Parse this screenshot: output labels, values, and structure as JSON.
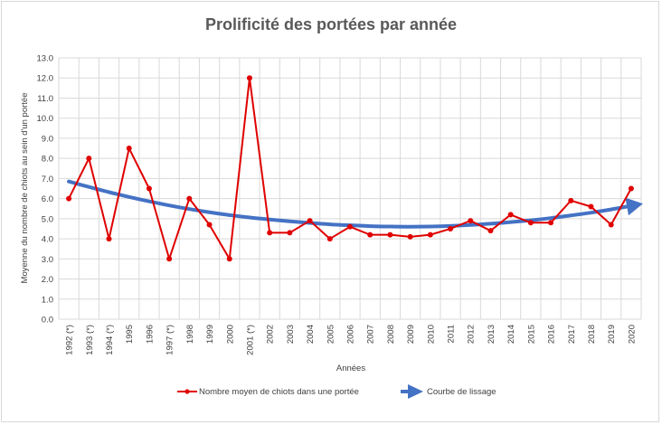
{
  "chart_data": {
    "type": "line",
    "title": "Prolificité des portées par année",
    "xlabel": "Années",
    "ylabel": "Moyenne du nombre de chiots au sein d'un portée",
    "ylim": [
      0,
      13
    ],
    "yticks": [
      "0.0",
      "1.0",
      "2.0",
      "3.0",
      "4.0",
      "5.0",
      "6.0",
      "7.0",
      "8.0",
      "9.0",
      "10.0",
      "11.0",
      "12.0",
      "13.0"
    ],
    "categories": [
      "1992 (*)",
      "1993 (*)",
      "1994 (*)",
      "1995",
      "1996",
      "1997 (*)",
      "1998",
      "1999",
      "2000",
      "2001 (*)",
      "2002",
      "2003",
      "2004",
      "2005",
      "2006",
      "2007",
      "2008",
      "2009",
      "2010",
      "2011",
      "2012",
      "2013",
      "2014",
      "2015",
      "2016",
      "2017",
      "2018",
      "2019",
      "2020"
    ],
    "grid": true,
    "legend_position": "bottom",
    "series": [
      {
        "name": "Nombre moyen de chiots dans une portée",
        "color": "#e00000",
        "values": [
          6.0,
          8.0,
          4.0,
          8.5,
          6.5,
          3.0,
          6.0,
          4.7,
          3.0,
          12.0,
          4.3,
          4.3,
          4.9,
          4.0,
          4.6,
          4.2,
          4.2,
          4.1,
          4.2,
          4.5,
          4.9,
          4.4,
          5.2,
          4.8,
          4.8,
          5.9,
          5.6,
          4.7,
          6.5
        ]
      },
      {
        "name": "Courbe de lissage",
        "color": "#4472c4",
        "values": [
          6.85,
          6.58,
          6.32,
          6.08,
          5.86,
          5.66,
          5.48,
          5.32,
          5.18,
          5.06,
          4.96,
          4.87,
          4.79,
          4.72,
          4.67,
          4.63,
          4.61,
          4.6,
          4.61,
          4.64,
          4.69,
          4.75,
          4.83,
          4.92,
          5.03,
          5.16,
          5.3,
          5.46,
          5.64
        ]
      }
    ]
  }
}
